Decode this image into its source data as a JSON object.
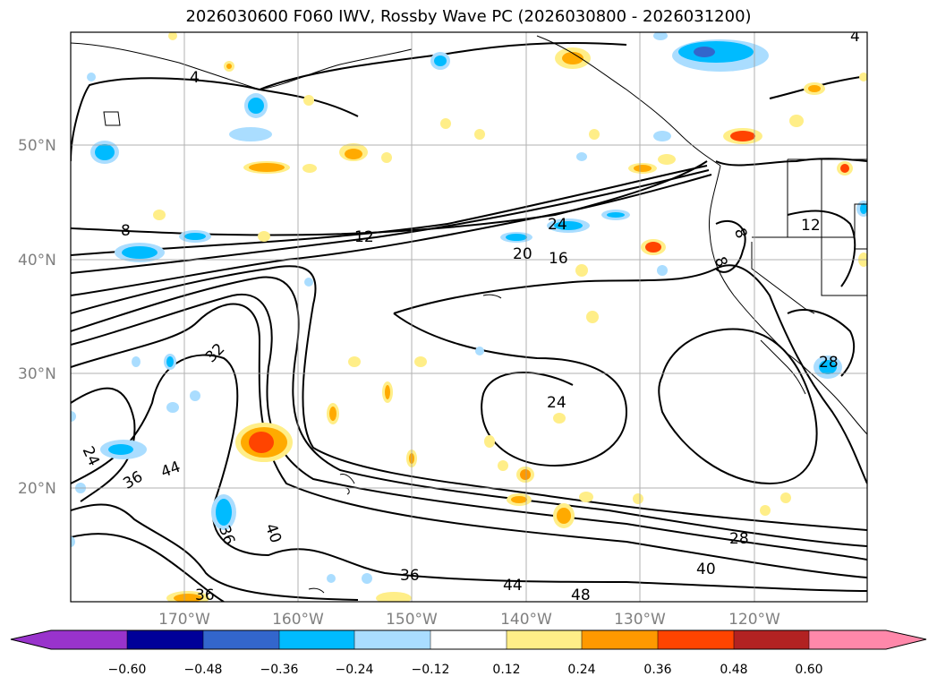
{
  "title": "2026030600 F060 IWV, Rossby Wave PC (2026030800 - 2026031200)",
  "lat_labels": [
    "50°N",
    "40°N",
    "30°N",
    "20°N"
  ],
  "lon_labels": [
    "170°W",
    "160°W",
    "150°W",
    "140°W",
    "130°W",
    "120°W"
  ],
  "contour_labels": [
    "4",
    "8",
    "12",
    "16",
    "20",
    "24",
    "24",
    "32",
    "36",
    "44",
    "24",
    "36",
    "40",
    "36",
    "44",
    "48",
    "40",
    "28",
    "8",
    "8",
    "12",
    "28",
    "4"
  ],
  "colorbar": {
    "ticks": [
      "−0.60",
      "−0.48",
      "−0.36",
      "−0.24",
      "−0.12",
      "0.12",
      "0.24",
      "0.36",
      "0.48",
      "0.60"
    ],
    "colors": [
      "#9933cc",
      "#000099",
      "#3366cc",
      "#00bbff",
      "#aaddff",
      "#ffffff",
      "#ffee88",
      "#ff9900",
      "#ff4400",
      "#b22222",
      "#ff88aa"
    ]
  },
  "colors": {
    "pos_light": "#ffee88",
    "pos_mid": "#ffaa00",
    "pos_strong": "#ff4400",
    "neg_light": "#aaddff",
    "neg_mid": "#00bbff",
    "neg_strong": "#3366cc"
  }
}
